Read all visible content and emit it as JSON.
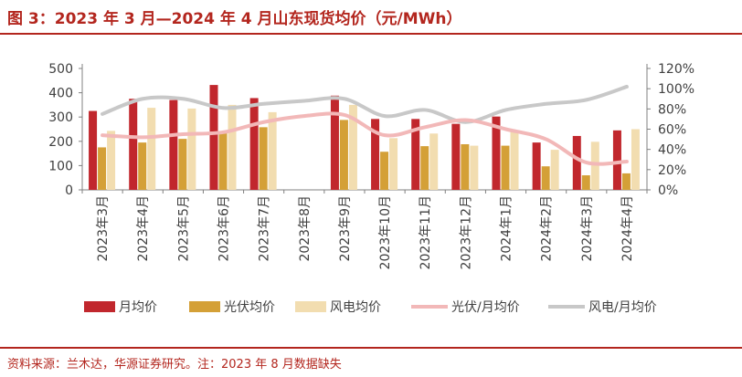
{
  "header": {
    "title": "图 3：2023 年 3 月—2024 年 4 月山东现货均价（元/MWh）"
  },
  "footer": {
    "source": "资料来源：兰木达，华源证券研究。注：2023 年 8 月数据缺失"
  },
  "colors": {
    "monthly_avg": "#c1272d",
    "pv_avg": "#d4a037",
    "wind_avg": "#f2ddb0",
    "pv_ratio": "#f2b8b8",
    "wind_ratio": "#c8c8c8",
    "title": "#b3261e"
  },
  "chart_data": {
    "type": "bar",
    "categories": [
      "2023年3月",
      "2023年4月",
      "2023年5月",
      "2023年6月",
      "2023年7月",
      "2023年8月",
      "2023年9月",
      "2023年10月",
      "2023年11月",
      "2023年12月",
      "2024年1月",
      "2024年2月",
      "2024年3月",
      "2024年4月"
    ],
    "series": [
      {
        "name": "月均价",
        "type": "bar",
        "axis": "left",
        "values": [
          325,
          375,
          370,
          432,
          378,
          null,
          388,
          292,
          292,
          272,
          302,
          195,
          222,
          245
        ]
      },
      {
        "name": "光伏均价",
        "type": "bar",
        "axis": "left",
        "values": [
          175,
          195,
          210,
          242,
          258,
          null,
          288,
          157,
          180,
          188,
          182,
          97,
          60,
          68
        ]
      },
      {
        "name": "风电均价",
        "type": "bar",
        "axis": "left",
        "values": [
          243,
          338,
          335,
          350,
          320,
          null,
          350,
          213,
          232,
          182,
          240,
          165,
          198,
          250
        ]
      },
      {
        "name": "光伏/月均价",
        "type": "line",
        "axis": "right",
        "values": [
          0.54,
          0.52,
          0.55,
          0.57,
          0.67,
          0.73,
          0.74,
          0.54,
          0.62,
          0.69,
          0.6,
          0.5,
          0.27,
          0.28
        ]
      },
      {
        "name": "风电/月均价",
        "type": "line",
        "axis": "right",
        "values": [
          0.75,
          0.9,
          0.9,
          0.81,
          0.85,
          0.88,
          0.9,
          0.73,
          0.79,
          0.67,
          0.79,
          0.85,
          0.89,
          1.02
        ]
      }
    ],
    "y_left": {
      "min": 0,
      "max": 500,
      "ticks": [
        "0",
        "100",
        "200",
        "300",
        "400",
        "500"
      ]
    },
    "y_right": {
      "min": 0,
      "max": 1.2,
      "ticks": [
        "0%",
        "20%",
        "40%",
        "60%",
        "80%",
        "100%",
        "120%"
      ]
    },
    "grid": false,
    "legend": "bottom"
  }
}
